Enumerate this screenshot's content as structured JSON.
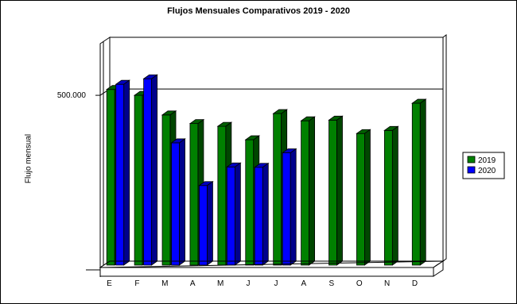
{
  "chart_data": {
    "type": "bar",
    "title": "Flujos Mensuales Comparativos 2019 - 2020",
    "xlabel": "",
    "ylabel": "Flujo mensual",
    "categories": [
      "E",
      "F",
      "M",
      "A",
      "M",
      "J",
      "J",
      "A",
      "S",
      "O",
      "N",
      "D"
    ],
    "series": [
      {
        "name": "2019",
        "color": "#008000",
        "values": [
          517000,
          500000,
          443000,
          418000,
          410000,
          371000,
          447000,
          426000,
          428000,
          389000,
          398000,
          477000
        ]
      },
      {
        "name": "2020",
        "color": "#0000ff",
        "values": [
          532000,
          548000,
          362000,
          238000,
          292000,
          291000,
          333000,
          null,
          null,
          null,
          null,
          null
        ]
      }
    ],
    "ytick_labels": [
      "500.000"
    ],
    "ytick_values": [
      500000
    ],
    "ylim": [
      0,
      650000
    ],
    "grid": "horizontal line at 500.000",
    "legend_position": "right",
    "style": "3d"
  }
}
